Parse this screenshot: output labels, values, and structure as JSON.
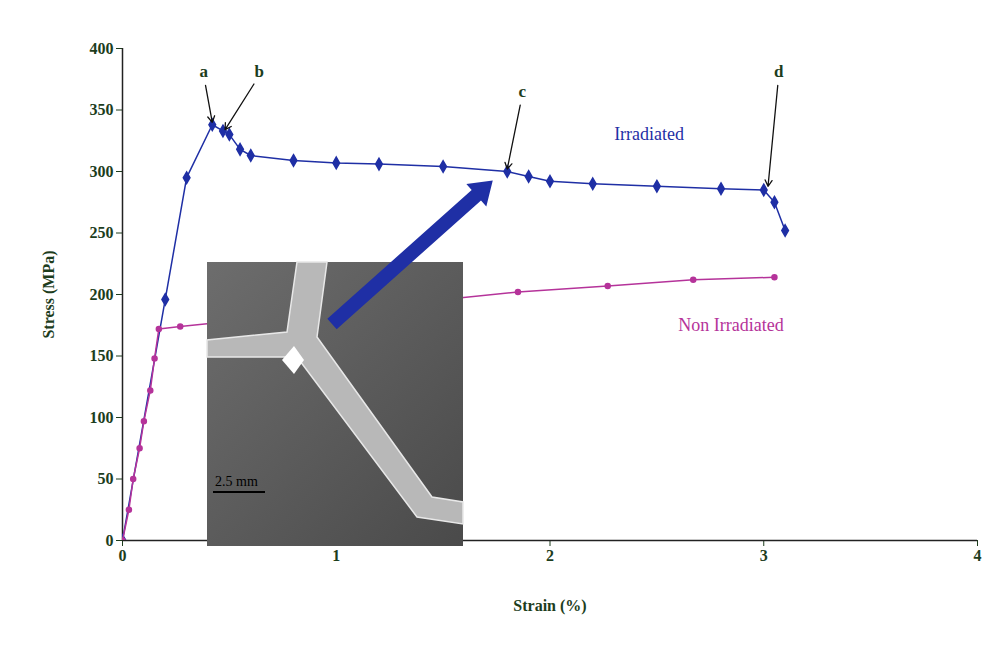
{
  "chart_data": {
    "type": "line",
    "x_label": "Strain (%)",
    "y_label": "Stress (MPa)",
    "xlim": [
      0,
      4
    ],
    "xticks": [
      0,
      1,
      2,
      3,
      4
    ],
    "ylim": [
      0,
      400
    ],
    "yticks": [
      0,
      50,
      100,
      150,
      200,
      250,
      300,
      350,
      400
    ],
    "grid": false,
    "series": [
      {
        "name": "Irradiated",
        "color": "#1f2fa5",
        "marker": "diamond",
        "line_style": "solid",
        "label_x": 2.3,
        "label_y": 330,
        "x": [
          0,
          0.2,
          0.3,
          0.42,
          0.47,
          0.5,
          0.55,
          0.6,
          0.8,
          1.0,
          1.2,
          1.5,
          1.8,
          1.9,
          2.0,
          2.2,
          2.5,
          2.8,
          3.0,
          3.05,
          3.1
        ],
        "values": [
          0,
          196,
          295,
          338,
          333,
          330,
          318,
          313,
          309,
          307,
          306,
          304,
          300,
          296,
          292,
          290,
          288,
          286,
          285,
          275,
          252
        ]
      },
      {
        "name": "Non Irradiated",
        "color": "#b5339a",
        "marker": "circle",
        "line_style": "solid",
        "label_x": 2.6,
        "label_y": 175,
        "x": [
          0,
          0.03,
          0.05,
          0.08,
          0.1,
          0.13,
          0.15,
          0.17,
          0.27,
          1.85,
          2.27,
          2.67,
          3.05
        ],
        "values": [
          0,
          25,
          50,
          75,
          97,
          122,
          148,
          172,
          174,
          202,
          207,
          212,
          214
        ]
      }
    ],
    "annotations": [
      {
        "text": "a",
        "x": 0.42,
        "y": 340,
        "text_x": 0.38,
        "text_y": 378
      },
      {
        "text": "b",
        "x": 0.48,
        "y": 334,
        "text_x": 0.64,
        "text_y": 378
      },
      {
        "text": "c",
        "x": 1.8,
        "y": 302,
        "text_x": 1.87,
        "text_y": 362
      },
      {
        "text": "d",
        "x": 3.02,
        "y": 288,
        "text_x": 3.07,
        "text_y": 378
      }
    ],
    "inset_scale_label": "2.5 mm"
  }
}
